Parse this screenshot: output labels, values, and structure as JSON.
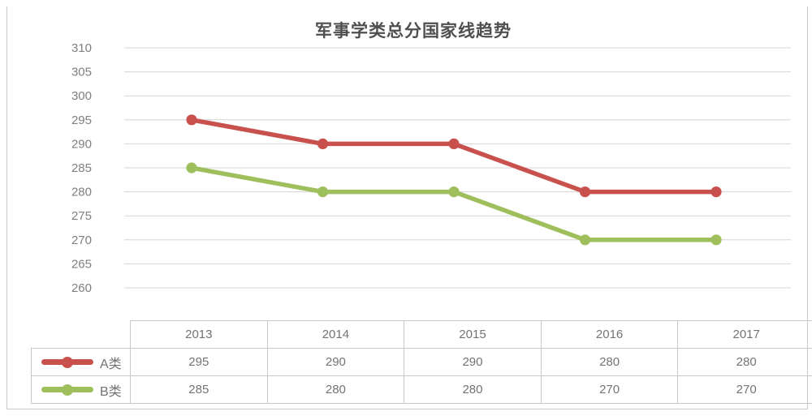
{
  "page": {
    "title": "军事学类总分国家线趋势"
  },
  "chart_data": {
    "type": "line",
    "title": "军事学类总分国家线趋势",
    "categories": [
      "2013",
      "2014",
      "2015",
      "2016",
      "2017"
    ],
    "series": [
      {
        "name": "A类",
        "values": [
          295,
          290,
          290,
          280,
          280
        ],
        "color": "#c9514d"
      },
      {
        "name": "B类",
        "values": [
          285,
          280,
          280,
          270,
          270
        ],
        "color": "#9ebf5c"
      }
    ],
    "xlabel": "",
    "ylabel": "",
    "ylim": [
      260,
      310
    ],
    "ytick_step": 5,
    "yticks": [
      310,
      305,
      300,
      295,
      290,
      285,
      280,
      275,
      270,
      265,
      260
    ],
    "grid": true,
    "legend_position": "table-left",
    "colors": {
      "grid": "#d6d6d6",
      "border": "#c9c9c9",
      "axis_text": "#7f7f7f",
      "table_text": "#737373",
      "title_text": "#4f4f4f"
    }
  }
}
